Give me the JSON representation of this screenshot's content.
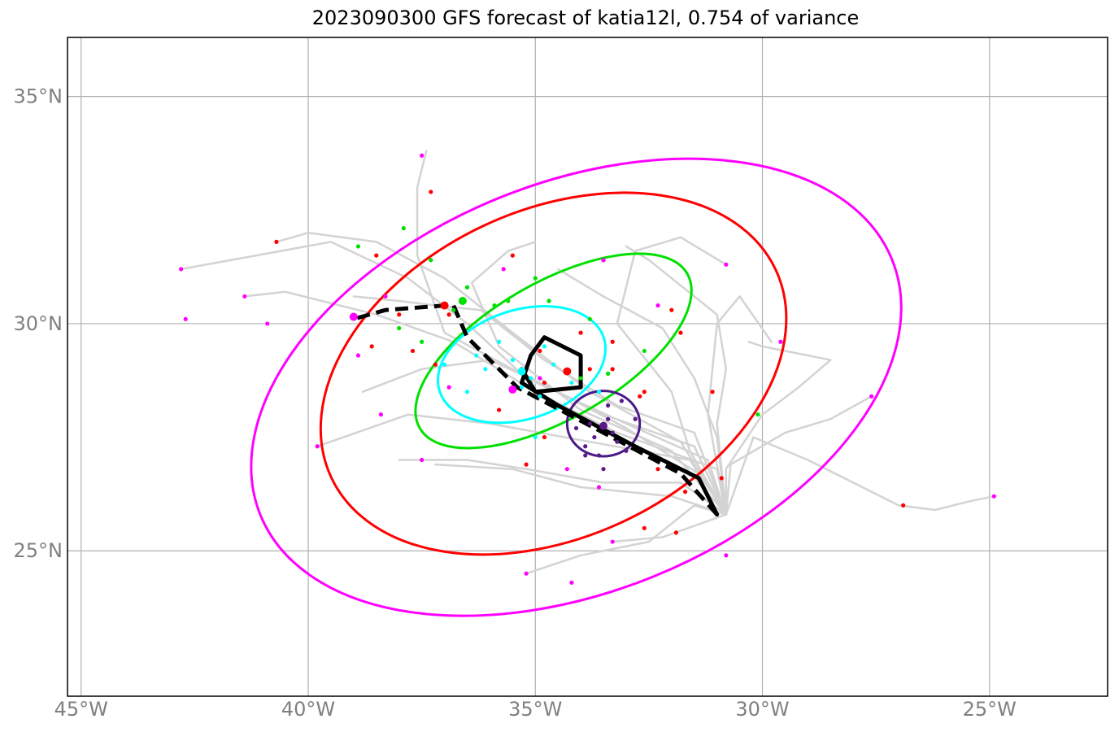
{
  "title": "2023090300 GFS forecast of katia12l, 0.754 of variance",
  "map": {
    "lon_range": [
      -45.3,
      -22.4
    ],
    "lat_range": [
      21.8,
      36.3
    ],
    "lon_ticks": [
      {
        "value": -45,
        "label": "45°W"
      },
      {
        "value": -40,
        "label": "40°W"
      },
      {
        "value": -35,
        "label": "35°W"
      },
      {
        "value": -30,
        "label": "30°W"
      },
      {
        "value": -25,
        "label": "25°W"
      }
    ],
    "lat_ticks": [
      {
        "value": 35,
        "label": "35°N"
      },
      {
        "value": 30,
        "label": "30°N"
      },
      {
        "value": 25,
        "label": "25°N"
      }
    ],
    "grid": true
  },
  "colors": {
    "ensemble_track": "#d3d3d3",
    "mean_track": "#000000",
    "ellipse_1": "#ff00ff",
    "ellipse_2": "#ff0000",
    "ellipse_3": "#00e000",
    "ellipse_4": "#00ffff",
    "ellipse_5": "#4b1a8a",
    "dot_purple": "#5b1a8a",
    "dot_cyan": "#00ffff",
    "dot_green": "#00e000",
    "dot_red": "#ff0000",
    "dot_magenta": "#ff00ff"
  },
  "chart_data": {
    "type": "scatter",
    "mean_track_solid": [
      [
        -31.0,
        25.8
      ],
      [
        -31.4,
        26.6
      ],
      [
        -32.8,
        27.3
      ],
      [
        -34.5,
        28.2
      ],
      [
        -35.3,
        28.7
      ],
      [
        -35.1,
        29.3
      ],
      [
        -34.8,
        29.7
      ],
      [
        -34.0,
        29.3
      ],
      [
        -34.0,
        28.6
      ],
      [
        -35.0,
        28.5
      ],
      [
        -35.3,
        29.0
      ]
    ],
    "mean_track_dashed": [
      [
        -31.0,
        25.8
      ],
      [
        -31.8,
        26.7
      ],
      [
        -33.5,
        27.6
      ],
      [
        -35.4,
        28.6
      ],
      [
        -36.5,
        29.7
      ],
      [
        -36.8,
        30.4
      ],
      [
        -37.0,
        30.4
      ],
      [
        -38.3,
        30.3
      ],
      [
        -39.0,
        30.1
      ]
    ],
    "ensemble_tracks": [
      [
        [
          -30.8,
          25.8
        ],
        [
          -31.5,
          27.3
        ],
        [
          -33.5,
          28.0
        ],
        [
          -35.5,
          29.0
        ],
        [
          -37.0,
          29.8
        ],
        [
          -37.6,
          31.5
        ],
        [
          -37.6,
          33.0
        ],
        [
          -37.4,
          33.8
        ]
      ],
      [
        [
          -30.8,
          25.8
        ],
        [
          -31.2,
          27.0
        ],
        [
          -33.0,
          27.8
        ],
        [
          -35.2,
          28.8
        ],
        [
          -36.5,
          30.0
        ],
        [
          -37.8,
          31.0
        ],
        [
          -39.5,
          31.8
        ],
        [
          -42.8,
          31.2
        ]
      ],
      [
        [
          -30.8,
          25.8
        ],
        [
          -31.0,
          26.8
        ],
        [
          -33.2,
          27.6
        ],
        [
          -35.0,
          28.5
        ],
        [
          -36.8,
          29.6
        ],
        [
          -38.5,
          30.2
        ],
        [
          -40.5,
          30.7
        ],
        [
          -41.4,
          30.6
        ]
      ],
      [
        [
          -30.8,
          25.8
        ],
        [
          -31.6,
          27.0
        ],
        [
          -33.8,
          27.4
        ],
        [
          -36.0,
          27.8
        ],
        [
          -37.8,
          28.0
        ],
        [
          -39.8,
          27.3
        ]
      ],
      [
        [
          -30.8,
          25.8
        ],
        [
          -31.8,
          26.5
        ],
        [
          -33.5,
          26.5
        ],
        [
          -35.2,
          26.8
        ],
        [
          -36.5,
          27.0
        ],
        [
          -38.0,
          27.0
        ]
      ],
      [
        [
          -30.8,
          25.8
        ],
        [
          -30.7,
          26.9
        ],
        [
          -29.5,
          27.6
        ],
        [
          -28.5,
          27.9
        ],
        [
          -27.6,
          28.4
        ]
      ],
      [
        [
          -30.8,
          25.8
        ],
        [
          -30.2,
          27.5
        ],
        [
          -29.0,
          27.0
        ],
        [
          -28.0,
          26.5
        ],
        [
          -27.0,
          26.0
        ],
        [
          -26.2,
          25.9
        ],
        [
          -25.4,
          26.1
        ],
        [
          -24.9,
          26.2
        ]
      ],
      [
        [
          -30.8,
          25.8
        ],
        [
          -31.5,
          26.0
        ],
        [
          -32.5,
          25.2
        ],
        [
          -34.0,
          24.9
        ],
        [
          -35.2,
          24.5
        ]
      ],
      [
        [
          -30.8,
          25.8
        ],
        [
          -32.2,
          25.3
        ],
        [
          -33.3,
          25.2
        ]
      ],
      [
        [
          -30.8,
          25.8
        ],
        [
          -31.0,
          27.5
        ],
        [
          -31.5,
          28.8
        ],
        [
          -32.2,
          29.9
        ],
        [
          -33.5,
          30.6
        ],
        [
          -34.5,
          31.2
        ]
      ],
      [
        [
          -30.8,
          25.8
        ],
        [
          -31.0,
          27.8
        ],
        [
          -30.8,
          29.0
        ],
        [
          -31.0,
          30.2
        ],
        [
          -32.5,
          31.4
        ],
        [
          -33.0,
          31.7
        ]
      ],
      [
        [
          -30.8,
          25.8
        ],
        [
          -31.2,
          28.0
        ],
        [
          -31.0,
          30.0
        ],
        [
          -30.5,
          30.6
        ],
        [
          -29.8,
          29.6
        ]
      ],
      [
        [
          -30.8,
          25.8
        ],
        [
          -31.6,
          27.2
        ],
        [
          -32.0,
          28.5
        ],
        [
          -33.2,
          30.0
        ],
        [
          -32.8,
          31.6
        ],
        [
          -31.8,
          31.9
        ],
        [
          -30.8,
          31.3
        ]
      ],
      [
        [
          -30.8,
          25.8
        ],
        [
          -32.0,
          26.2
        ],
        [
          -34.0,
          26.4
        ],
        [
          -35.5,
          26.8
        ],
        [
          -37.2,
          26.9
        ]
      ],
      [
        [
          -30.8,
          25.8
        ],
        [
          -31.5,
          27.6
        ],
        [
          -33.2,
          28.2
        ],
        [
          -34.8,
          29.2
        ],
        [
          -36.2,
          30.3
        ],
        [
          -37.2,
          30.4
        ],
        [
          -38.0,
          30.5
        ],
        [
          -39.0,
          30.6
        ]
      ],
      [
        [
          -30.8,
          25.8
        ],
        [
          -32.0,
          27.2
        ],
        [
          -34.0,
          28.1
        ],
        [
          -35.8,
          29.5
        ],
        [
          -36.4,
          30.9
        ],
        [
          -35.6,
          31.6
        ],
        [
          -35.0,
          31.8
        ]
      ],
      [
        [
          -30.8,
          25.8
        ],
        [
          -31.8,
          27.4
        ],
        [
          -33.8,
          28.5
        ],
        [
          -35.5,
          29.8
        ],
        [
          -37.0,
          31.0
        ],
        [
          -38.5,
          31.8
        ],
        [
          -40.0,
          32.0
        ],
        [
          -40.7,
          31.8
        ]
      ],
      [
        [
          -30.8,
          25.8
        ],
        [
          -31.4,
          26.7
        ],
        [
          -33.0,
          27.7
        ],
        [
          -34.7,
          28.6
        ],
        [
          -36.0,
          29.2
        ],
        [
          -37.5,
          29.0
        ],
        [
          -38.8,
          28.5
        ]
      ],
      [
        [
          -30.8,
          25.8
        ],
        [
          -30.8,
          26.8
        ],
        [
          -30.0,
          28.0
        ],
        [
          -29.2,
          28.6
        ],
        [
          -28.5,
          29.2
        ],
        [
          -30.0,
          29.5
        ],
        [
          -30.3,
          29.6
        ]
      ]
    ],
    "ellipses": [
      {
        "color_key": "ellipse_1",
        "center": [
          -34.1,
          28.6
        ],
        "semi_major_deg": 7.5,
        "semi_minor_deg": 4.5,
        "angle_deg": -22
      },
      {
        "color_key": "ellipse_2",
        "center": [
          -34.6,
          28.9
        ],
        "semi_major_deg": 5.4,
        "semi_minor_deg": 3.6,
        "angle_deg": -25
      },
      {
        "color_key": "ellipse_3",
        "center": [
          -34.6,
          29.4
        ],
        "semi_major_deg": 3.4,
        "semi_minor_deg": 1.5,
        "angle_deg": -30
      },
      {
        "color_key": "ellipse_4",
        "center": [
          -35.3,
          29.1
        ],
        "semi_major_deg": 1.9,
        "semi_minor_deg": 1.2,
        "angle_deg": -18
      },
      {
        "color_key": "ellipse_5",
        "center": [
          -33.5,
          27.8
        ],
        "semi_major_deg": 0.8,
        "semi_minor_deg": 0.72,
        "angle_deg": 0
      }
    ],
    "mean_markers": [
      {
        "color_key": "dot_purple",
        "lon": -33.5,
        "lat": 27.75
      },
      {
        "color_key": "dot_cyan",
        "lon": -35.3,
        "lat": 28.95
      },
      {
        "color_key": "dot_green",
        "lon": -36.6,
        "lat": 30.5
      },
      {
        "color_key": "dot_red",
        "lon": -37.0,
        "lat": 30.4
      },
      {
        "color_key": "dot_red",
        "lon": -34.3,
        "lat": 28.95
      },
      {
        "color_key": "dot_magenta",
        "lon": -39.0,
        "lat": 30.15
      },
      {
        "color_key": "dot_magenta",
        "lon": -35.5,
        "lat": 28.55
      }
    ],
    "member_dots": [
      {
        "color_key": "dot_purple",
        "points": [
          [
            -33.8,
            27.8
          ],
          [
            -33.4,
            28.2
          ],
          [
            -33.2,
            27.4
          ],
          [
            -33.9,
            27.3
          ],
          [
            -33.6,
            27.1
          ],
          [
            -33.1,
            28.3
          ],
          [
            -32.8,
            27.9
          ],
          [
            -33.5,
            26.8
          ],
          [
            -33.3,
            27.6
          ],
          [
            -34.1,
            27.7
          ],
          [
            -33.0,
            27.2
          ],
          [
            -33.7,
            27.5
          ],
          [
            -33.4,
            27.9
          ],
          [
            -33.9,
            27.1
          ]
        ]
      },
      {
        "color_key": "dot_cyan",
        "points": [
          [
            -35.8,
            29.6
          ],
          [
            -35.5,
            29.2
          ],
          [
            -35.1,
            28.8
          ],
          [
            -34.6,
            29.1
          ],
          [
            -36.1,
            29.0
          ],
          [
            -36.5,
            28.5
          ],
          [
            -34.9,
            28.4
          ],
          [
            -35.0,
            27.5
          ],
          [
            -37.0,
            29.1
          ],
          [
            -34.2,
            28.7
          ],
          [
            -33.6,
            28.5
          ],
          [
            -36.3,
            29.3
          ],
          [
            -35.3,
            28.6
          ],
          [
            -34.8,
            29.5
          ]
        ]
      },
      {
        "color_key": "dot_green",
        "points": [
          [
            -38.9,
            31.7
          ],
          [
            -37.9,
            32.1
          ],
          [
            -37.3,
            31.4
          ],
          [
            -36.5,
            30.8
          ],
          [
            -35.6,
            30.5
          ],
          [
            -35.0,
            31.0
          ],
          [
            -34.7,
            30.5
          ],
          [
            -33.8,
            30.1
          ],
          [
            -35.9,
            30.4
          ],
          [
            -37.5,
            29.6
          ],
          [
            -38.0,
            29.9
          ],
          [
            -34.0,
            28.8
          ],
          [
            -32.6,
            29.4
          ],
          [
            -33.4,
            28.9
          ],
          [
            -30.1,
            28.0
          ],
          [
            -36.8,
            30.3
          ]
        ]
      },
      {
        "color_key": "dot_red",
        "points": [
          [
            -37.3,
            32.9
          ],
          [
            -40.7,
            31.8
          ],
          [
            -38.5,
            31.5
          ],
          [
            -35.5,
            31.5
          ],
          [
            -33.5,
            31.4
          ],
          [
            -32.0,
            30.3
          ],
          [
            -31.8,
            29.8
          ],
          [
            -31.1,
            28.5
          ],
          [
            -32.6,
            28.5
          ],
          [
            -32.7,
            28.4
          ],
          [
            -33.3,
            29.6
          ],
          [
            -34.0,
            29.8
          ],
          [
            -34.9,
            29.4
          ],
          [
            -35.8,
            28.1
          ],
          [
            -36.9,
            30.2
          ],
          [
            -38.0,
            30.2
          ],
          [
            -37.2,
            29.1
          ],
          [
            -37.7,
            29.4
          ],
          [
            -38.6,
            29.5
          ],
          [
            -35.2,
            26.9
          ],
          [
            -34.8,
            27.5
          ],
          [
            -32.3,
            26.8
          ],
          [
            -31.7,
            26.3
          ],
          [
            -30.9,
            26.6
          ],
          [
            -32.6,
            25.5
          ],
          [
            -31.9,
            25.4
          ],
          [
            -26.9,
            26.0
          ],
          [
            -33.3,
            29.0
          ],
          [
            -33.8,
            29.0
          ],
          [
            -34.8,
            28.7
          ]
        ]
      },
      {
        "color_key": "dot_magenta",
        "points": [
          [
            -37.5,
            33.7
          ],
          [
            -42.8,
            31.2
          ],
          [
            -42.7,
            30.1
          ],
          [
            -41.4,
            30.6
          ],
          [
            -40.9,
            30.0
          ],
          [
            -38.9,
            29.3
          ],
          [
            -38.4,
            28.0
          ],
          [
            -39.8,
            27.3
          ],
          [
            -37.5,
            27.0
          ],
          [
            -34.3,
            26.8
          ],
          [
            -33.6,
            26.4
          ],
          [
            -33.3,
            25.2
          ],
          [
            -34.2,
            24.3
          ],
          [
            -35.2,
            24.5
          ],
          [
            -30.8,
            24.9
          ],
          [
            -24.9,
            26.2
          ],
          [
            -27.6,
            28.4
          ],
          [
            -29.6,
            29.6
          ],
          [
            -30.8,
            31.3
          ],
          [
            -33.5,
            31.4
          ],
          [
            -32.3,
            30.4
          ],
          [
            -36.9,
            28.6
          ],
          [
            -38.3,
            30.6
          ],
          [
            -35.7,
            31.2
          ],
          [
            -34.9,
            28.8
          ]
        ]
      }
    ]
  }
}
